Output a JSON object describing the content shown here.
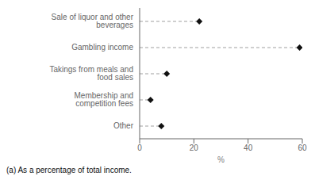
{
  "chart_data": {
    "type": "dot",
    "orientation": "horizontal",
    "categories": [
      "Sale of liquor and other beverages",
      "Gambling income",
      "Takings from meals and food sales",
      "Membership and competition fees",
      "Other"
    ],
    "values": [
      22,
      59,
      10,
      4,
      8
    ],
    "xlabel": "%",
    "xlim": [
      0,
      60
    ],
    "xticks": [
      0,
      20,
      40,
      60
    ],
    "annotations": [
      "(a) As a percentage of total income."
    ],
    "color": "#111111",
    "marker": "diamond",
    "line_style": "dashed",
    "grid": false
  }
}
